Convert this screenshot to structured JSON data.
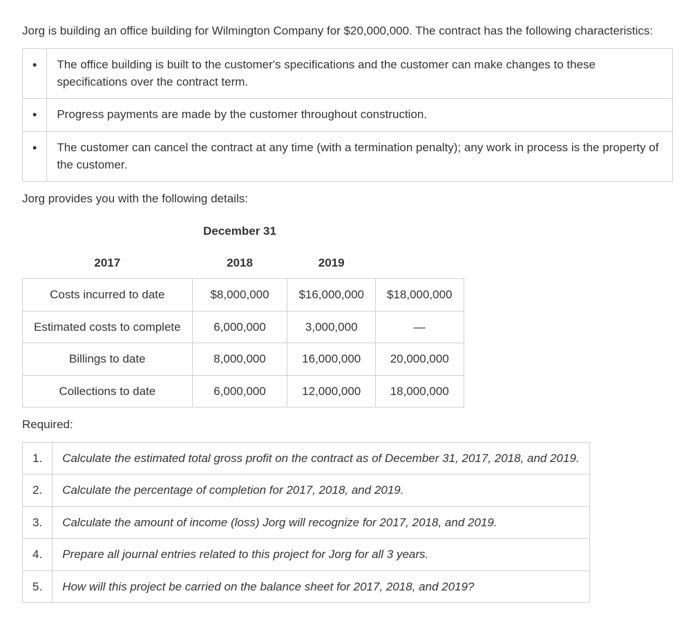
{
  "intro": "Jorg is building an office building for Wilmington Company for $20,000,000. The contract has the following characteristics:",
  "characteristics": [
    "The office building is built to the customer's specifications and the customer can make changes to these specifications over the contract term.",
    "Progress payments are made by the customer throughout construction.",
    "The customer can cancel the contract at any time (with a termination penalty); any work in process is the property of the customer."
  ],
  "details_intro": "Jorg provides you with the following details:",
  "data_table": {
    "super_header": "December 31",
    "years": [
      "2017",
      "2018",
      "2019"
    ],
    "rows": [
      {
        "label": "Costs incurred to date",
        "values": [
          "$8,000,000",
          "$16,000,000",
          "$18,000,000"
        ]
      },
      {
        "label": "Estimated costs to complete",
        "values": [
          "6,000,000",
          "3,000,000",
          "—"
        ]
      },
      {
        "label": "Billings to date",
        "values": [
          "8,000,000",
          "16,000,000",
          "20,000,000"
        ]
      },
      {
        "label": "Collections to date",
        "values": [
          "6,000,000",
          "12,000,000",
          "18,000,000"
        ]
      }
    ]
  },
  "required_label": "Required:",
  "required_items": [
    "Calculate the estimated total gross profit on the contract as of December 31, 2017, 2018, and 2019.",
    "Calculate the percentage of completion for 2017, 2018, and 2019.",
    "Calculate the amount of income (loss) Jorg will recognize for 2017, 2018, and 2019.",
    "Prepare all journal entries related to this project for Jorg for all 3 years.",
    "How will this project be carried on the balance sheet for 2017, 2018, and 2019?"
  ],
  "bullet_glyph": "•"
}
